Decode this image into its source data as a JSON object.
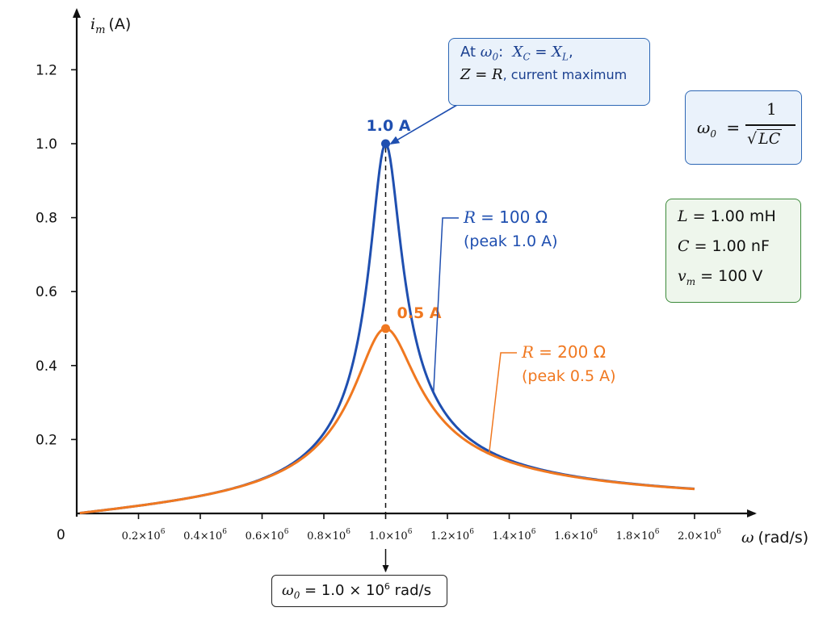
{
  "chart_data": {
    "type": "line",
    "xlabel": "(rad/s)",
    "xlabel_symbol": "ω",
    "ylabel": "(A)",
    "ylabel_symbol": "i",
    "ylabel_sub": "m",
    "origin_label": "0",
    "xlim": [
      0,
      2.1
    ],
    "ylim": [
      0,
      1.3
    ],
    "x_ticks": [
      {
        "value": 0.2,
        "mant": "0.2×10",
        "exp": "6"
      },
      {
        "value": 0.4,
        "mant": "0.4×10",
        "exp": "6"
      },
      {
        "value": 0.6,
        "mant": "0.6×10",
        "exp": "6"
      },
      {
        "value": 0.8,
        "mant": "0.8×10",
        "exp": "6"
      },
      {
        "value": 1.0,
        "mant": "1.0×10",
        "exp": "6"
      },
      {
        "value": 1.2,
        "mant": "1.2×10",
        "exp": "6"
      },
      {
        "value": 1.4,
        "mant": "1.4×10",
        "exp": "6"
      },
      {
        "value": 1.6,
        "mant": "1.6×10",
        "exp": "6"
      },
      {
        "value": 1.8,
        "mant": "1.8×10",
        "exp": "6"
      },
      {
        "value": 2.0,
        "mant": "2.0×10",
        "exp": "6"
      }
    ],
    "y_ticks": [
      {
        "value": 0.2,
        "label": "0.2"
      },
      {
        "value": 0.4,
        "label": "0.4"
      },
      {
        "value": 0.6,
        "label": "0.6"
      },
      {
        "value": 0.8,
        "label": "0.8"
      },
      {
        "value": 1.0,
        "label": "1.0"
      },
      {
        "value": 1.2,
        "label": "1.2"
      }
    ],
    "series": [
      {
        "R": 100,
        "peak": 1.0,
        "color": "#1f4fb0",
        "label_sym": "R",
        "label_val": "= 100 Ω",
        "label_sub": "(peak 1.0 A)",
        "peak_label": "1.0 A"
      },
      {
        "R": 200,
        "peak": 0.5,
        "color": "#f07820",
        "label_sym": "R",
        "label_val": "= 200 Ω",
        "label_sub": "(peak 0.5 A)",
        "peak_label": "0.5 A"
      }
    ],
    "params": {
      "L_mH": 1.0,
      "C_nF": 1.0,
      "vm_V": 100
    },
    "x_range": [
      0.01,
      2.0
    ],
    "resonance_x": 1.0
  },
  "annotations": {
    "callout": {
      "prefix": "At ",
      "w0": "ω",
      "w0_sub": "0",
      "cond": "X",
      "cond_sub_c": "C",
      "eq": " = ",
      "cond2": "X",
      "cond_sub_l": "L",
      "tail1": ",",
      "z": "Z",
      "z_eq": " = ",
      "z_r": "R",
      "tail2": ", current maximum"
    },
    "formula": {
      "lhs": "ω",
      "lhs_sub": "0",
      "eq": "=",
      "num": "1",
      "den": "LC"
    },
    "params_box": {
      "L_sym": "L",
      "L_val": "= 1.00 mH",
      "C_sym": "C",
      "C_val": "= 1.00 nF",
      "v_sym": "v",
      "v_sub": "m",
      "v_val": "= 100 V"
    },
    "resonance_box": {
      "sym": "ω",
      "sub": "0",
      "val": " = 1.0 × 10",
      "exp": "6",
      "unit": " rad/s"
    }
  },
  "colors": {
    "blue": "#1f4fb0",
    "orange": "#f07820",
    "axis": "#111111"
  }
}
